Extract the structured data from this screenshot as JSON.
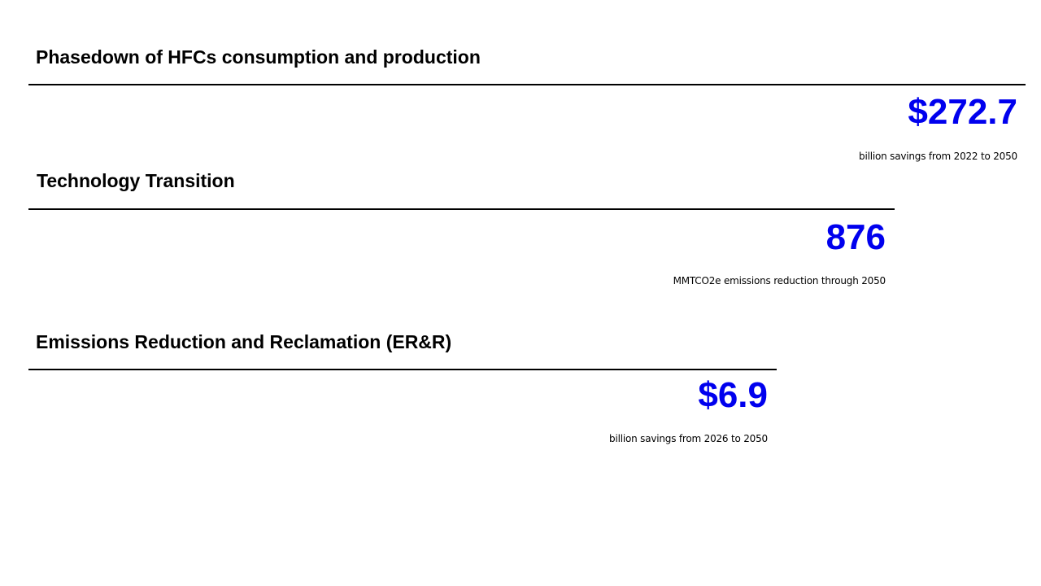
{
  "sections": [
    {
      "title": "Phasedown of HFCs consumption and production",
      "value": "$272.7",
      "caption": "billion savings from 2022 to 2050"
    },
    {
      "title": "Technology Transition",
      "value": "876",
      "caption": "MMTCO2e emissions reduction through 2050"
    },
    {
      "title": "Emissions Reduction and Reclamation (ER&R)",
      "value": "$6.9",
      "caption": "billion savings from 2026 to 2050"
    }
  ],
  "colors": {
    "value_color": "#0000ee",
    "rule_color": "#000000",
    "text_color": "#000000"
  }
}
